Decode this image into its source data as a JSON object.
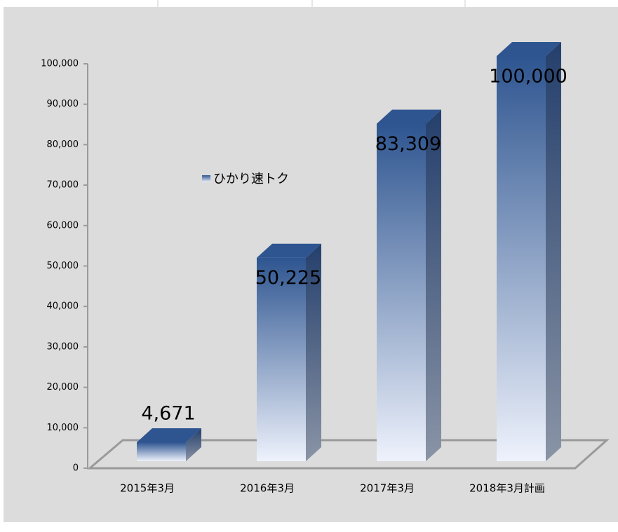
{
  "chart_data": {
    "type": "bar3d",
    "categories": [
      "2015年3月",
      "2016年3月",
      "2017年3月",
      "2018年3月計画"
    ],
    "series": [
      {
        "name": "ひかり速トク",
        "color": "#2e5590",
        "values": [
          4671,
          50225,
          83309,
          100000
        ],
        "value_labels": [
          "4,671",
          "50,225",
          "83,309",
          "100,000"
        ]
      }
    ],
    "ylim": [
      0,
      100000
    ],
    "yticks": [
      0,
      {
        "value": 10000,
        "label": "10,000"
      },
      {
        "value": 20000,
        "label": "20,000"
      },
      {
        "value": 30000,
        "label": "30,000"
      },
      {
        "value": 40000,
        "label": "40,000"
      },
      {
        "value": 50000,
        "label": "50,000"
      },
      {
        "value": 60000,
        "label": "60,000"
      },
      {
        "value": 70000,
        "label": "70,000"
      },
      {
        "value": 80000,
        "label": "80,000"
      },
      {
        "value": 90000,
        "label": "90,000"
      },
      {
        "value": 100000,
        "label": "100,000"
      }
    ],
    "legend": "inside-left"
  }
}
